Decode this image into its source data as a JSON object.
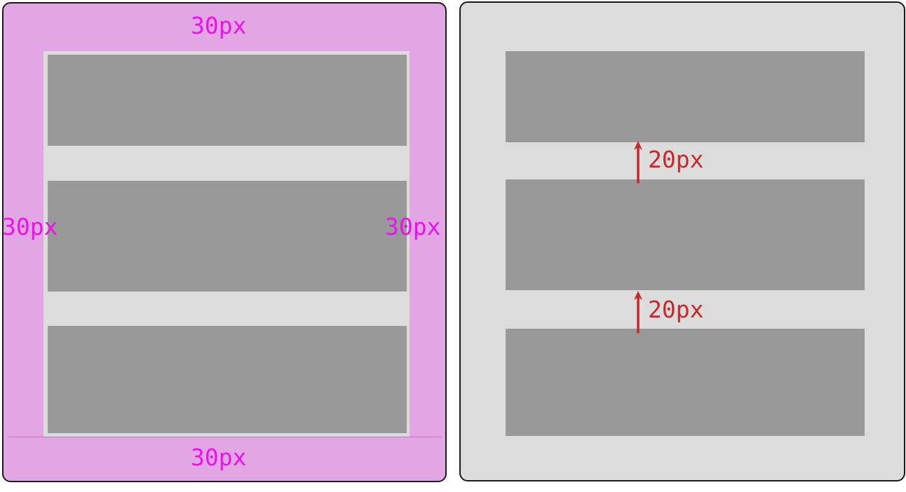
{
  "padding_panel": {
    "top_label": "30px",
    "bottom_label": "30px",
    "left_label": "30px",
    "right_label": "30px",
    "fill_color": "#e3a6e5",
    "label_color": "#ee11ee"
  },
  "gap_panel": {
    "gap_labels": [
      "20px",
      "20px"
    ],
    "label_color": "#c82828"
  },
  "colors": {
    "block": "#999999",
    "container": "#dcdcdc",
    "border": "#1a1a1a"
  }
}
